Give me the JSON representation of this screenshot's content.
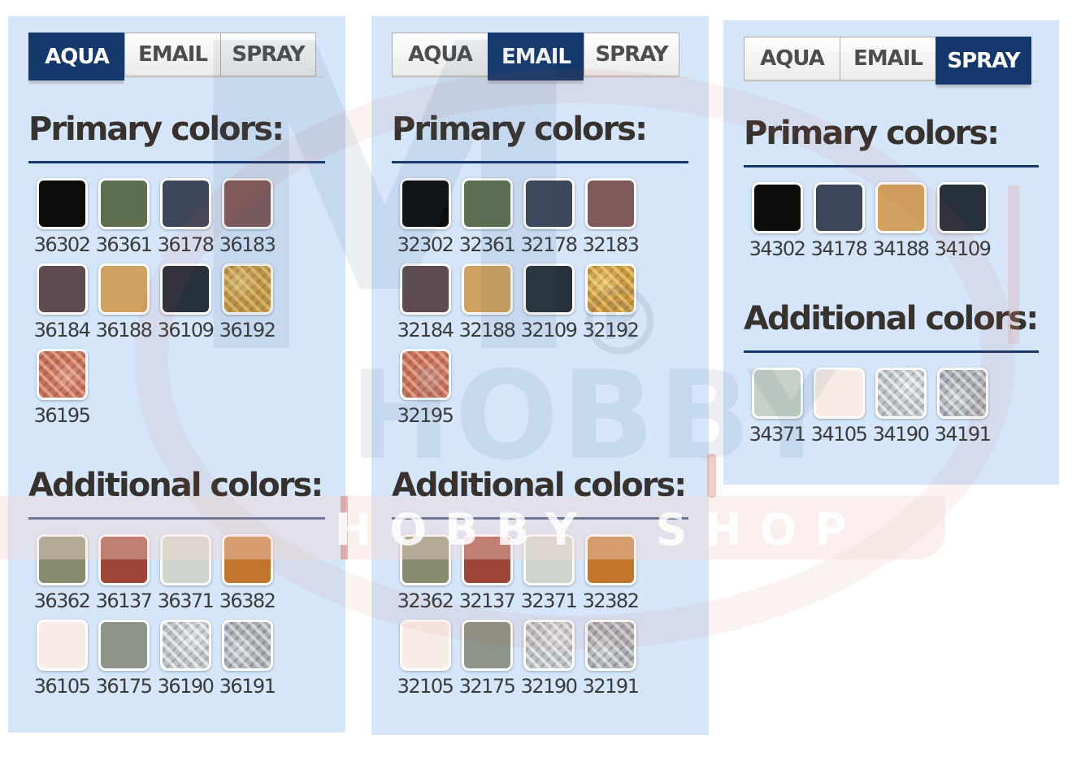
{
  "watermark": {
    "logo_m": "M",
    "logo_reg": "®",
    "logo_hobby": "HOBBY",
    "band_text": "HOBBY SHOP"
  },
  "colors": {
    "panel_background": "#d5e6fa",
    "active_tab": "#14386b",
    "heading_rule": "#15366e"
  },
  "panels": [
    {
      "name": "aqua",
      "tabs": [
        {
          "label": "AQUA",
          "active": true
        },
        {
          "label": "EMAIL",
          "active": false
        },
        {
          "label": "SPRAY",
          "active": false
        }
      ],
      "sections": [
        {
          "heading": "Primary colors:",
          "swatches": [
            {
              "code": "36302",
              "color": "#0d0d0d",
              "texture": "solid"
            },
            {
              "code": "36361",
              "color": "#5d6f4e",
              "texture": "solid"
            },
            {
              "code": "36178",
              "color": "#3e4659",
              "texture": "solid"
            },
            {
              "code": "36183",
              "color": "#7f5a58",
              "texture": "solid"
            },
            {
              "code": "36184",
              "color": "#5d4b4f",
              "texture": "solid"
            },
            {
              "code": "36188",
              "color": "#d0a15f",
              "texture": "solid"
            },
            {
              "code": "36109",
              "color": "#27313c",
              "texture": "solid"
            },
            {
              "code": "36192",
              "color": "#c8973f",
              "texture": "gold"
            },
            {
              "code": "36195",
              "color": "#c4715c",
              "texture": "copper"
            }
          ]
        },
        {
          "heading": "Additional colors:",
          "swatches": [
            {
              "code": "36362",
              "color": "#888c6e",
              "texture": "solid"
            },
            {
              "code": "36137",
              "color": "#9f4438",
              "texture": "solid"
            },
            {
              "code": "36371",
              "color": "#ced5cd",
              "texture": "solid"
            },
            {
              "code": "36382",
              "color": "#c1762b",
              "texture": "solid"
            },
            {
              "code": "36105",
              "color": "#f8ece7",
              "texture": "solid"
            },
            {
              "code": "36175",
              "color": "#8d9489",
              "texture": "solid"
            },
            {
              "code": "36190",
              "color": "#bcc1c6",
              "texture": "silver"
            },
            {
              "code": "36191",
              "color": "#a9aeb4",
              "texture": "steel"
            }
          ]
        }
      ]
    },
    {
      "name": "email",
      "tabs": [
        {
          "label": "AQUA",
          "active": false
        },
        {
          "label": "EMAIL",
          "active": true
        },
        {
          "label": "SPRAY",
          "active": false
        }
      ],
      "sections": [
        {
          "heading": "Primary colors:",
          "swatches": [
            {
              "code": "32302",
              "color": "#0d0d0d",
              "texture": "solid"
            },
            {
              "code": "32361",
              "color": "#5d6f4e",
              "texture": "solid"
            },
            {
              "code": "32178",
              "color": "#3e4659",
              "texture": "solid"
            },
            {
              "code": "32183",
              "color": "#7f5a58",
              "texture": "solid"
            },
            {
              "code": "32184",
              "color": "#5d4b4f",
              "texture": "solid"
            },
            {
              "code": "32188",
              "color": "#d0a15f",
              "texture": "solid"
            },
            {
              "code": "32109",
              "color": "#27313c",
              "texture": "solid"
            },
            {
              "code": "32192",
              "color": "#c8973f",
              "texture": "gold"
            },
            {
              "code": "32195",
              "color": "#c4715c",
              "texture": "copper"
            }
          ]
        },
        {
          "heading": "Additional colors:",
          "swatches": [
            {
              "code": "32362",
              "color": "#888c6e",
              "texture": "solid"
            },
            {
              "code": "32137",
              "color": "#9f4438",
              "texture": "solid"
            },
            {
              "code": "32371",
              "color": "#ced5cd",
              "texture": "solid"
            },
            {
              "code": "32382",
              "color": "#c1762b",
              "texture": "solid"
            },
            {
              "code": "32105",
              "color": "#f8ece7",
              "texture": "solid"
            },
            {
              "code": "32175",
              "color": "#8d9489",
              "texture": "solid"
            },
            {
              "code": "32190",
              "color": "#bcc1c6",
              "texture": "silver"
            },
            {
              "code": "32191",
              "color": "#a9aeb4",
              "texture": "steel"
            }
          ]
        }
      ]
    },
    {
      "name": "spray",
      "tabs": [
        {
          "label": "AQUA",
          "active": false
        },
        {
          "label": "EMAIL",
          "active": false
        },
        {
          "label": "SPRAY",
          "active": true
        }
      ],
      "sections": [
        {
          "heading": "Primary colors:",
          "swatches": [
            {
              "code": "34302",
              "color": "#0d0d0d",
              "texture": "solid"
            },
            {
              "code": "34178",
              "color": "#3e4659",
              "texture": "solid"
            },
            {
              "code": "34188",
              "color": "#d0a15f",
              "texture": "solid"
            },
            {
              "code": "34109",
              "color": "#27313c",
              "texture": "solid"
            }
          ]
        },
        {
          "heading": "Additional colors:",
          "swatches": [
            {
              "code": "34371",
              "color": "#c5d1c6",
              "texture": "solid"
            },
            {
              "code": "34105",
              "color": "#f8ece7",
              "texture": "solid"
            },
            {
              "code": "34190",
              "color": "#bcc1c6",
              "texture": "silver"
            },
            {
              "code": "34191",
              "color": "#a9aeb4",
              "texture": "steel"
            }
          ]
        }
      ]
    }
  ]
}
